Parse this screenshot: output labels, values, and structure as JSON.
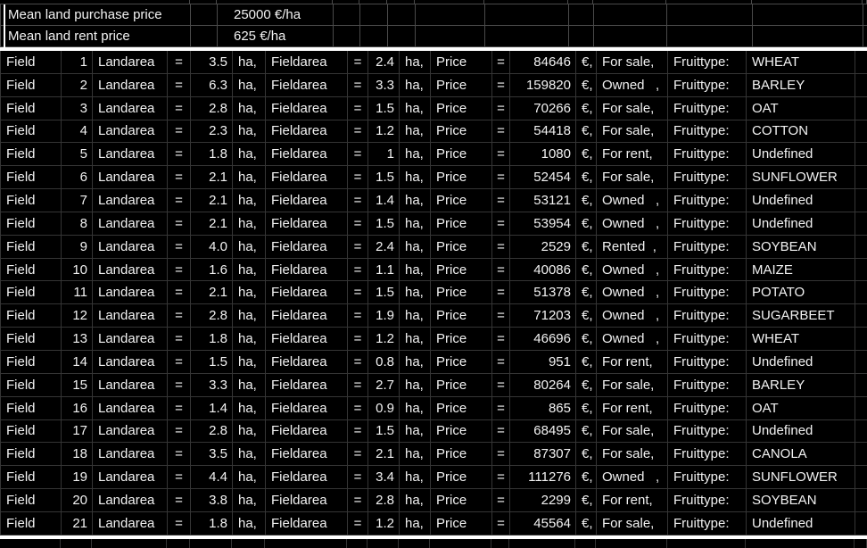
{
  "summary": {
    "purchase_label": "Mean land purchase price",
    "purchase_value": "25000 €/ha",
    "rent_label": "Mean land rent price",
    "rent_value": "625 €/ha"
  },
  "table": {
    "labels": {
      "field": "Field",
      "landarea": "Landarea",
      "fieldarea": "Fieldarea",
      "price": "Price",
      "equals": "=",
      "ha": "ha,",
      "euro": "€,",
      "fruittype": "Fruittype:"
    },
    "rows": [
      {
        "num": "1",
        "landarea": "3.5",
        "fieldarea": "2.4",
        "price": "84646",
        "status": "For sale,",
        "fruit": "WHEAT"
      },
      {
        "num": "2",
        "landarea": "6.3",
        "fieldarea": "3.3",
        "price": "159820",
        "status": "Owned   ,",
        "fruit": "BARLEY"
      },
      {
        "num": "3",
        "landarea": "2.8",
        "fieldarea": "1.5",
        "price": "70266",
        "status": "For sale,",
        "fruit": "OAT"
      },
      {
        "num": "4",
        "landarea": "2.3",
        "fieldarea": "1.2",
        "price": "54418",
        "status": "For sale,",
        "fruit": "COTTON"
      },
      {
        "num": "5",
        "landarea": "1.8",
        "fieldarea": "1",
        "price": "1080",
        "status": "For rent,",
        "fruit": "Undefined"
      },
      {
        "num": "6",
        "landarea": "2.1",
        "fieldarea": "1.5",
        "price": "52454",
        "status": "For sale,",
        "fruit": "SUNFLOWER"
      },
      {
        "num": "7",
        "landarea": "2.1",
        "fieldarea": "1.4",
        "price": "53121",
        "status": "Owned   ,",
        "fruit": "Undefined"
      },
      {
        "num": "8",
        "landarea": "2.1",
        "fieldarea": "1.5",
        "price": "53954",
        "status": "Owned   ,",
        "fruit": "Undefined"
      },
      {
        "num": "9",
        "landarea": "4.0",
        "fieldarea": "2.4",
        "price": "2529",
        "status": "Rented  ,",
        "fruit": "SOYBEAN"
      },
      {
        "num": "10",
        "landarea": "1.6",
        "fieldarea": "1.1",
        "price": "40086",
        "status": "Owned   ,",
        "fruit": "MAIZE"
      },
      {
        "num": "11",
        "landarea": "2.1",
        "fieldarea": "1.5",
        "price": "51378",
        "status": "Owned   ,",
        "fruit": "POTATO"
      },
      {
        "num": "12",
        "landarea": "2.8",
        "fieldarea": "1.9",
        "price": "71203",
        "status": "Owned   ,",
        "fruit": "SUGARBEET"
      },
      {
        "num": "13",
        "landarea": "1.8",
        "fieldarea": "1.2",
        "price": "46696",
        "status": "Owned   ,",
        "fruit": "WHEAT"
      },
      {
        "num": "14",
        "landarea": "1.5",
        "fieldarea": "0.8",
        "price": "951",
        "status": "For rent,",
        "fruit": "Undefined"
      },
      {
        "num": "15",
        "landarea": "3.3",
        "fieldarea": "2.7",
        "price": "80264",
        "status": "For sale,",
        "fruit": "BARLEY"
      },
      {
        "num": "16",
        "landarea": "1.4",
        "fieldarea": "0.9",
        "price": "865",
        "status": "For rent,",
        "fruit": "OAT"
      },
      {
        "num": "17",
        "landarea": "2.8",
        "fieldarea": "1.5",
        "price": "68495",
        "status": "For sale,",
        "fruit": "Undefined"
      },
      {
        "num": "18",
        "landarea": "3.5",
        "fieldarea": "2.1",
        "price": "87307",
        "status": "For sale,",
        "fruit": "CANOLA"
      },
      {
        "num": "19",
        "landarea": "4.4",
        "fieldarea": "3.4",
        "price": "111276",
        "status": "Owned   ,",
        "fruit": "SUNFLOWER"
      },
      {
        "num": "20",
        "landarea": "3.8",
        "fieldarea": "2.8",
        "price": "2299",
        "status": "For rent,",
        "fruit": "SOYBEAN"
      },
      {
        "num": "21",
        "landarea": "1.8",
        "fieldarea": "1.2",
        "price": "45564",
        "status": "For sale,",
        "fruit": "Undefined"
      }
    ]
  },
  "colors": {
    "background": "#000000",
    "grid_line_data": "#353535",
    "grid_line_header": "#4a4a4a",
    "text": "#f2f2f2",
    "divider": "#ffffff"
  }
}
